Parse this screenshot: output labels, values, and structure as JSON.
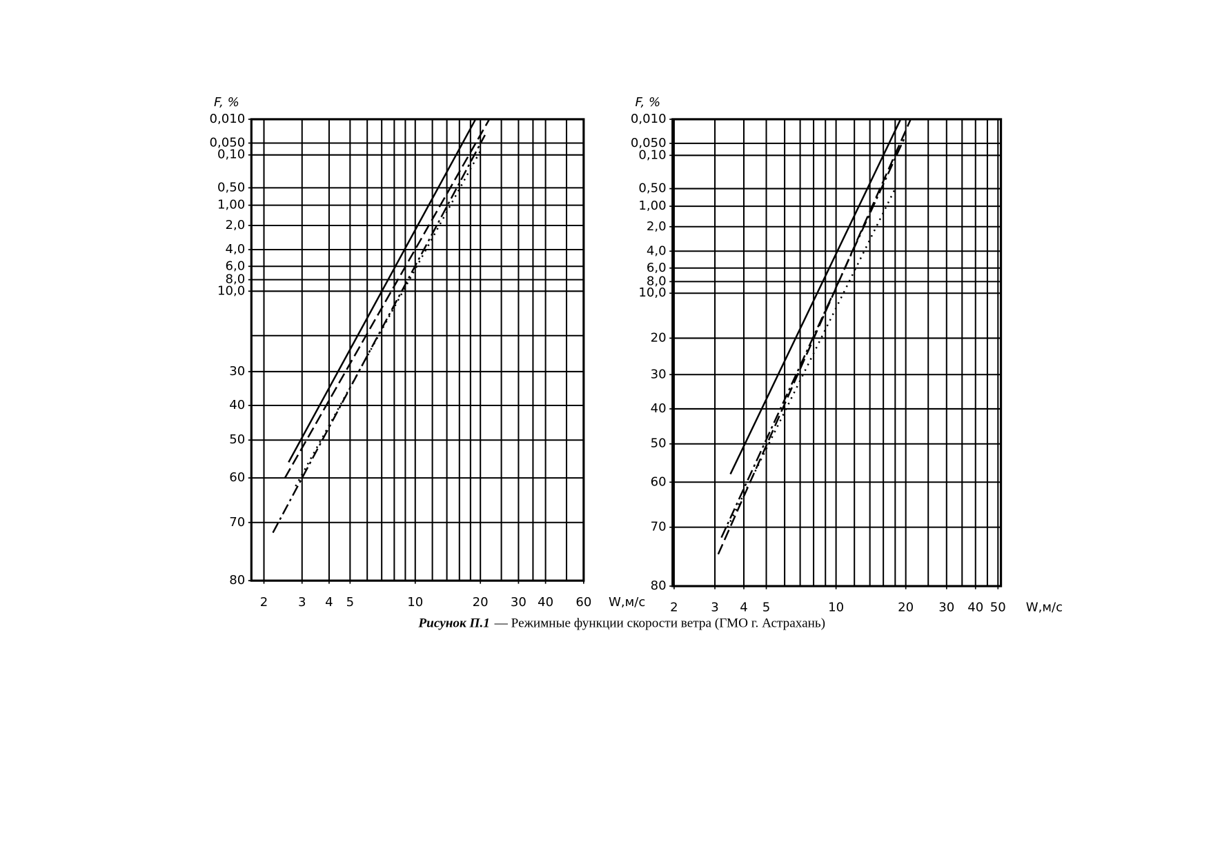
{
  "chart_data": [
    {
      "type": "line",
      "xscale": "log",
      "yscale": "weibull",
      "ylabel": "F, %",
      "xlabel": "W,м/с",
      "xlim": [
        1.75,
        60
      ],
      "ylim": [
        0.01,
        80
      ],
      "xticks": [
        2,
        3,
        4,
        5,
        10,
        20,
        30,
        40,
        60
      ],
      "yticks": [
        {
          "value": 0.01,
          "label": "0,010"
        },
        {
          "value": 0.05,
          "label": "0,050"
        },
        {
          "value": 0.1,
          "label": "0,10"
        },
        {
          "value": 0.5,
          "label": "0,50"
        },
        {
          "value": 1,
          "label": "1,00"
        },
        {
          "value": 2,
          "label": "2,0"
        },
        {
          "value": 4,
          "label": "4,0"
        },
        {
          "value": 6,
          "label": "6,0"
        },
        {
          "value": 8,
          "label": "8,0"
        },
        {
          "value": 10,
          "label": "10,0"
        },
        30,
        40,
        50,
        60,
        70,
        80
      ],
      "xgrid": [
        2,
        3,
        4,
        5,
        6,
        7,
        8,
        9,
        10,
        12,
        14,
        16,
        18,
        20,
        25,
        30,
        35,
        40,
        50,
        60
      ],
      "ygrid": [
        0.01,
        0.05,
        0.1,
        0.5,
        1,
        2,
        4,
        6,
        8,
        10,
        20,
        30,
        40,
        50,
        60,
        70,
        80
      ],
      "series": [
        {
          "color": "#000000",
          "dash": "solid",
          "x": [
            2.6,
            19
          ],
          "values": [
            56,
            0.01
          ]
        },
        {
          "color": "#000000",
          "dash": "dashed",
          "x": [
            2.5,
            22
          ],
          "values": [
            60,
            0.01
          ]
        },
        {
          "color": "#000000",
          "dash": "dashdot",
          "x": [
            2.2,
            21
          ],
          "values": [
            72,
            0.03
          ]
        },
        {
          "color": "#000000",
          "dash": "dotted",
          "x": [
            2.8,
            20
          ],
          "values": [
            62,
            0.08
          ]
        }
      ]
    },
    {
      "type": "line",
      "xscale": "log",
      "yscale": "weibull",
      "ylabel": "F, %",
      "xlabel": "W,м/с",
      "xlim": [
        1.97,
        51.5
      ],
      "ylim": [
        0.01,
        80
      ],
      "xticks": [
        2,
        3,
        4,
        5,
        10,
        20,
        30,
        40,
        50
      ],
      "yticks": [
        {
          "value": 0.01,
          "label": "0,010"
        },
        {
          "value": 0.05,
          "label": "0,050"
        },
        {
          "value": 0.1,
          "label": "0,10"
        },
        {
          "value": 0.5,
          "label": "0,50"
        },
        {
          "value": 1,
          "label": "1,00"
        },
        {
          "value": 2,
          "label": "2,0"
        },
        {
          "value": 4,
          "label": "4,0"
        },
        {
          "value": 6,
          "label": "6,0"
        },
        {
          "value": 8,
          "label": "8,0"
        },
        {
          "value": 10,
          "label": "10,0"
        },
        20,
        30,
        40,
        50,
        60,
        70,
        80
      ],
      "xgrid": [
        2,
        3,
        4,
        5,
        6,
        7,
        8,
        9,
        10,
        12,
        14,
        16,
        18,
        20,
        25,
        30,
        35,
        40,
        45,
        50
      ],
      "ygrid": [
        0.01,
        0.05,
        0.1,
        0.5,
        1,
        2,
        4,
        6,
        8,
        10,
        20,
        30,
        40,
        50,
        60,
        70,
        80
      ],
      "series": [
        {
          "color": "#000000",
          "dash": "solid",
          "x": [
            3.5,
            19
          ],
          "values": [
            58,
            0.01
          ]
        },
        {
          "color": "#000000",
          "dash": "dashed",
          "x": [
            3.1,
            21
          ],
          "values": [
            75,
            0.01
          ]
        },
        {
          "color": "#000000",
          "dash": "dashdot",
          "x": [
            3.2,
            20
          ],
          "values": [
            72,
            0.03
          ]
        },
        {
          "color": "#000000",
          "dash": "dotted",
          "x": [
            3.4,
            18
          ],
          "values": [
            70,
            0.5
          ]
        }
      ]
    }
  ],
  "caption": {
    "label": "Рисунок П.1",
    "text": "— Режимные функции скорости ветра (ГМО г. Астрахань)"
  }
}
